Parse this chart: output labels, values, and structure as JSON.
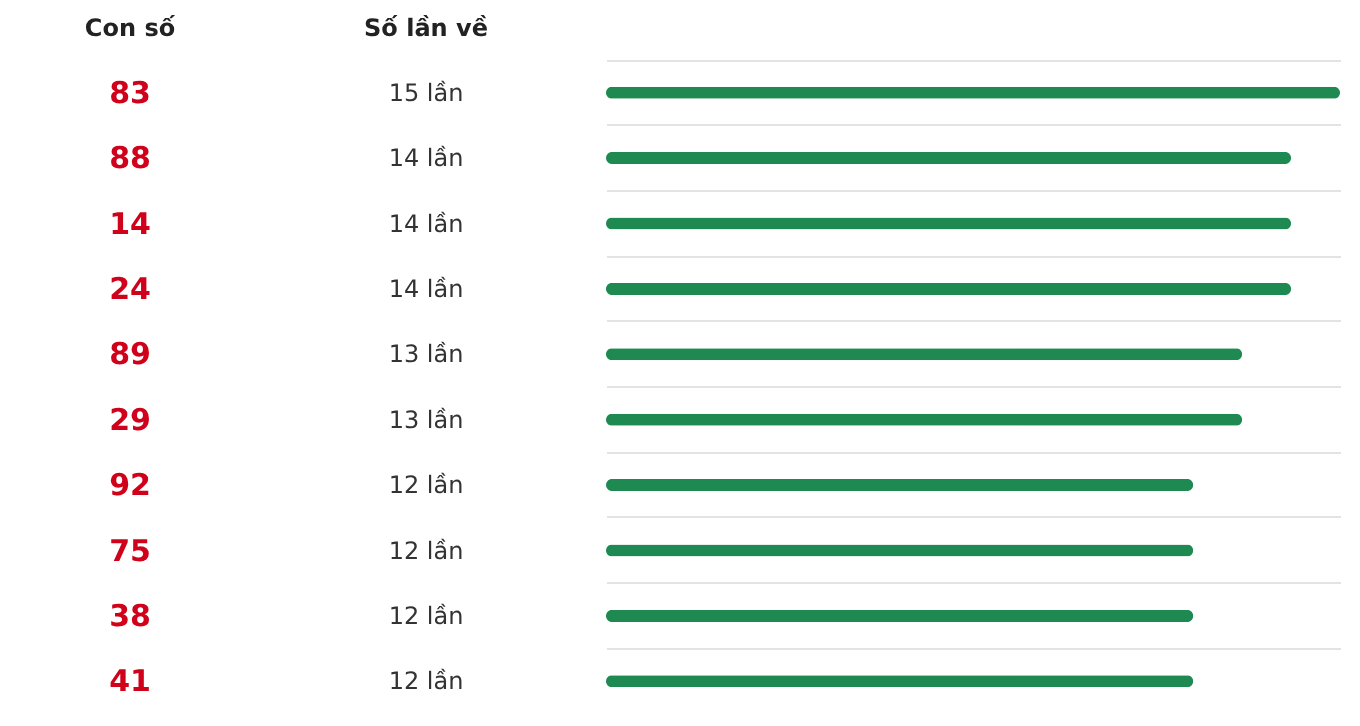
{
  "chart_data": {
    "type": "bar",
    "orientation": "horizontal",
    "ylabel": "Con số",
    "xlabel": "Số lần về",
    "categories": [
      "83",
      "88",
      "14",
      "24",
      "89",
      "29",
      "92",
      "75",
      "38",
      "41"
    ],
    "values": [
      15,
      14,
      14,
      14,
      13,
      13,
      12,
      12,
      12,
      12
    ],
    "value_labels": [
      "15 lần",
      "14 lần",
      "14 lần",
      "14 lần",
      "13 lần",
      "13 lần",
      "12 lần",
      "12 lần",
      "12 lần",
      "12 lần"
    ],
    "color": "#1e8a52",
    "xlim": [
      0,
      15
    ],
    "grid": "y",
    "tick_labels": false
  }
}
